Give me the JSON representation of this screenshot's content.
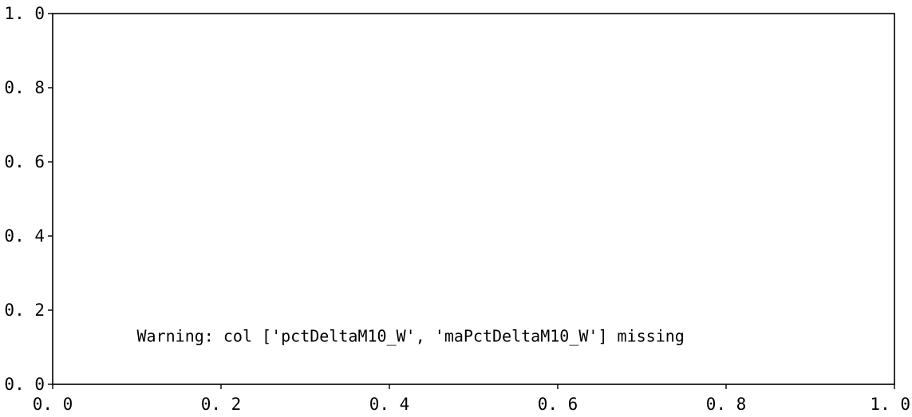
{
  "chart_data": {
    "type": "line",
    "title": "",
    "xlabel": "",
    "ylabel": "",
    "xlim": [
      0.0,
      1.0
    ],
    "ylim": [
      0.0,
      1.0
    ],
    "x_ticks": [
      0.0,
      0.2,
      0.4,
      0.6,
      0.8,
      1.0
    ],
    "x_tick_labels": [
      "0. 0",
      "0. 2",
      "0. 4",
      "0. 6",
      "0. 8",
      "1. 0"
    ],
    "y_ticks": [
      0.0,
      0.2,
      0.4,
      0.6,
      0.8,
      1.0
    ],
    "y_tick_labels": [
      "0. 0",
      "0. 2",
      "0. 4",
      "0. 6",
      "0. 8",
      "1. 0"
    ],
    "grid": false,
    "series": [],
    "annotations": [
      {
        "text": "Warning: col ['pctDeltaM10_W', 'maPctDeltaM10_W'] missing",
        "x": 0.1,
        "y": 0.115
      }
    ],
    "colors": {
      "axes": "#000000",
      "background": "#ffffff"
    }
  }
}
